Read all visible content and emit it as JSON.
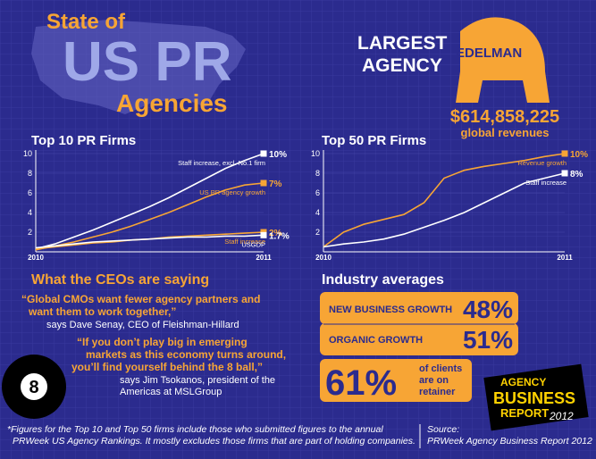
{
  "title": [
    "State of",
    "US PR",
    "Agencies"
  ],
  "largest": {
    "heading": [
      "LARGEST",
      "AGENCY"
    ],
    "name": "EDELMAN",
    "revenue": "$614,858,225",
    "caption": "global revenues"
  },
  "chart_data": [
    {
      "type": "line",
      "title": "Top 10 PR Firms",
      "categories": [
        "2010",
        null,
        null,
        null,
        null,
        null,
        null,
        null,
        null,
        null,
        null,
        null,
        "2011"
      ],
      "ylim": [
        0,
        10
      ],
      "yticks": [
        2,
        4,
        6,
        8,
        10
      ],
      "series": [
        {
          "name": "Staff increase, excl. No.1 firm",
          "color": "#ffffff",
          "values": [
            0.3,
            0.8,
            1.5,
            2.2,
            3,
            3.8,
            4.6,
            5.5,
            6.5,
            7.5,
            8.5,
            9.3,
            10
          ],
          "value_labels": [
            null,
            null,
            null,
            null,
            null,
            null,
            null,
            null,
            null,
            null,
            null,
            null,
            "10%"
          ]
        },
        {
          "name": "US PR agency growth",
          "color": "#f7a535",
          "values": [
            0.2,
            0.6,
            1.0,
            1.5,
            2.0,
            2.6,
            3.3,
            4.0,
            4.8,
            5.6,
            6.3,
            6.8,
            7
          ],
          "value_labels": [
            null,
            null,
            null,
            null,
            null,
            null,
            null,
            null,
            null,
            null,
            null,
            null,
            "7%"
          ]
        },
        {
          "name": "Staff increase",
          "color": "#f7a535",
          "values": [
            0.3,
            0.5,
            0.7,
            0.9,
            1.0,
            1.2,
            1.3,
            1.5,
            1.6,
            1.7,
            1.8,
            1.9,
            2
          ],
          "value_labels": [
            null,
            null,
            null,
            null,
            null,
            null,
            null,
            null,
            null,
            null,
            null,
            null,
            "2%"
          ]
        },
        {
          "name": "USGDP",
          "color": "#ffffff",
          "values": [
            0.4,
            0.6,
            0.8,
            1.0,
            1.1,
            1.2,
            1.3,
            1.4,
            1.5,
            1.5,
            1.6,
            1.6,
            1.7
          ],
          "value_labels": [
            null,
            null,
            null,
            null,
            null,
            null,
            null,
            null,
            null,
            null,
            null,
            null,
            "1.7%"
          ]
        }
      ]
    },
    {
      "type": "line",
      "title": "Top 50 PR Firms",
      "categories": [
        "2010",
        null,
        null,
        null,
        null,
        null,
        null,
        null,
        null,
        null,
        null,
        null,
        "2011"
      ],
      "ylim": [
        0,
        10
      ],
      "yticks": [
        2,
        4,
        6,
        8,
        10
      ],
      "series": [
        {
          "name": "Revenue growth",
          "color": "#f7a535",
          "values": [
            0.5,
            2,
            2.8,
            3.3,
            3.8,
            5,
            7.5,
            8.3,
            8.7,
            9,
            9.3,
            9.7,
            10
          ],
          "value_labels": [
            null,
            null,
            null,
            null,
            null,
            null,
            null,
            null,
            null,
            null,
            null,
            null,
            "10%"
          ]
        },
        {
          "name": "Staff increase",
          "color": "#ffffff",
          "values": [
            0.5,
            0.8,
            1,
            1.3,
            1.8,
            2.5,
            3.2,
            4,
            5,
            6,
            7,
            7.5,
            8
          ],
          "value_labels": [
            null,
            null,
            null,
            null,
            null,
            null,
            null,
            null,
            null,
            null,
            null,
            null,
            "8%"
          ]
        }
      ]
    }
  ],
  "ceos": {
    "heading": "What the CEOs are saying",
    "quote1": [
      "“Global CMOs want fewer agency partners and",
      "want them to work together,”"
    ],
    "attr1": "says Dave Senay, CEO of Fleishman-Hillard",
    "quote2": [
      "“If you don’t play big in emerging",
      "markets as this economy turns around,",
      "you’ll find yourself behind the 8 ball,”"
    ],
    "attr2": [
      "says Jim Tsokanos, president of the",
      "Americas at MSLGroup"
    ],
    "ball": "8"
  },
  "averages": {
    "heading": "Industry averages",
    "rows": [
      {
        "label": "NEW BUSINESS GROWTH",
        "value": "48%"
      },
      {
        "label": "ORGANIC GROWTH",
        "value": "51%"
      }
    ],
    "retainer": {
      "value": "61%",
      "caption": [
        "of clients",
        "are on",
        "retainer"
      ]
    }
  },
  "logo": [
    "AGENCY",
    "BUSINESS",
    "REPORT",
    "2012"
  ],
  "footnote": [
    "*Figures for the Top 10 and Top 50 firms include those who submitted figures to the annual",
    "PRWeek US Agency Rankings. It mostly excludes those firms that are part of holding companies."
  ],
  "source": [
    "Source:",
    "PRWeek Agency Business Report 2012"
  ]
}
